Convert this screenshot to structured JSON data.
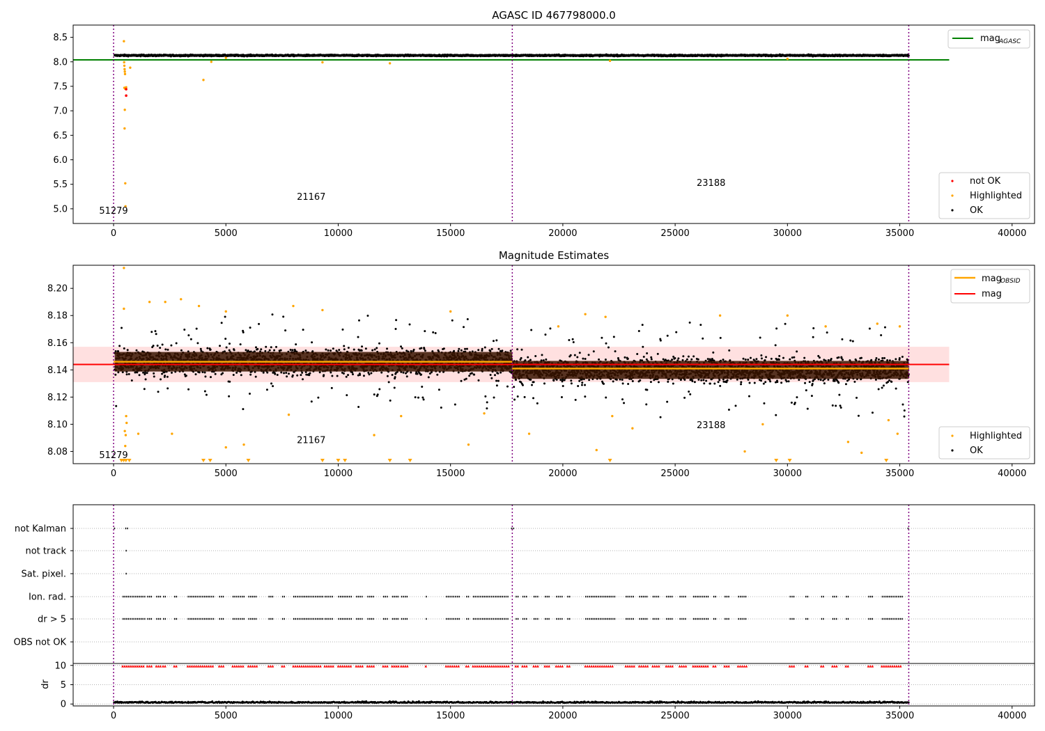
{
  "chart_data": [
    {
      "type": "scatter",
      "title": "AGASC ID 467798000.0",
      "xlim": [
        -1800,
        41000
      ],
      "ylim": [
        4.7,
        8.75
      ],
      "xticks": [
        0,
        5000,
        10000,
        15000,
        20000,
        25000,
        30000,
        35000,
        40000
      ],
      "xtick_labels": [
        "0",
        "5000",
        "10000",
        "15000",
        "20000",
        "25000",
        "30000",
        "35000",
        "40000"
      ],
      "yticks": [
        5.0,
        5.5,
        6.0,
        6.5,
        7.0,
        7.5,
        8.0,
        8.5
      ],
      "ytick_labels": [
        "5.0",
        "5.5",
        "6.0",
        "6.5",
        "7.0",
        "7.5",
        "8.0",
        "8.5"
      ],
      "obsid_boundaries": [
        0,
        17750,
        35400
      ],
      "obsid_labels": [
        {
          "text": "51279",
          "x": 0,
          "y": 4.9
        },
        {
          "text": "21167",
          "x": 8800,
          "y": 5.18
        },
        {
          "text": "23188",
          "x": 26600,
          "y": 5.47
        }
      ],
      "mag_agasc": 8.04,
      "mag_agasc_xrange": [
        -1800,
        37200
      ],
      "ok_band": {
        "x_start": 50,
        "x_end": 35400,
        "y_center": 8.13,
        "y_spread": 0.025
      },
      "highlighted_points": [
        [
          460,
          8.42
        ],
        [
          470,
          7.99
        ],
        [
          480,
          7.92
        ],
        [
          490,
          7.85
        ],
        [
          500,
          7.8
        ],
        [
          510,
          7.75
        ],
        [
          480,
          7.47
        ],
        [
          520,
          7.45
        ],
        [
          560,
          7.48
        ],
        [
          500,
          7.02
        ],
        [
          490,
          6.64
        ],
        [
          520,
          5.52
        ],
        [
          530,
          5.05
        ],
        [
          740,
          7.88
        ],
        [
          4000,
          7.63
        ],
        [
          4350,
          8.0
        ],
        [
          9300,
          7.99
        ],
        [
          12300,
          7.97
        ],
        [
          22100,
          8.02
        ],
        [
          5000,
          8.08
        ],
        [
          30000,
          8.06
        ]
      ],
      "not_ok_points": [
        [
          560,
          7.44
        ],
        [
          560,
          7.31
        ]
      ],
      "legend_mag": {
        "label": "mag",
        "sub": "AGASC",
        "location": "top-right"
      },
      "legend_status": {
        "labels": [
          "not OK",
          "Highlighted",
          "OK"
        ],
        "colors": [
          "#ff0000",
          "#ffa500",
          "#000000"
        ],
        "location": "bottom-right"
      }
    },
    {
      "type": "scatter",
      "title": "Magnitude Estimates",
      "xlim": [
        -1800,
        41000
      ],
      "ylim": [
        8.071,
        8.217
      ],
      "xticks": [
        0,
        5000,
        10000,
        15000,
        20000,
        25000,
        30000,
        35000,
        40000
      ],
      "xtick_labels": [
        "0",
        "5000",
        "10000",
        "15000",
        "20000",
        "25000",
        "30000",
        "35000",
        "40000"
      ],
      "yticks": [
        8.08,
        8.1,
        8.12,
        8.14,
        8.16,
        8.18,
        8.2
      ],
      "ytick_labels": [
        "8.08",
        "8.10",
        "8.12",
        "8.14",
        "8.16",
        "8.18",
        "8.20"
      ],
      "obsid_boundaries": [
        0,
        17750,
        35400
      ],
      "obsid_labels": [
        {
          "text": "51279",
          "x": 0,
          "y": 8.075
        },
        {
          "text": "21167",
          "x": 8800,
          "y": 8.086
        },
        {
          "text": "23188",
          "x": 26600,
          "y": 8.097
        }
      ],
      "mag": 8.144,
      "mag_band": [
        8.131,
        8.157
      ],
      "mag_xrange": [
        -1800,
        37200
      ],
      "mag_obsid": [
        {
          "x0": 0,
          "x1": 17750,
          "y": 8.146
        },
        {
          "x0": 17750,
          "x1": 35400,
          "y": 8.141
        }
      ],
      "ok_band": {
        "x_start": 50,
        "x_end": 35400,
        "segments": [
          {
            "x0": 50,
            "x1": 17750,
            "y_center": 8.146,
            "y_spread": 0.012
          },
          {
            "x0": 17750,
            "x1": 35400,
            "y_center": 8.14,
            "y_spread": 0.011
          }
        ]
      },
      "highlighted_points": [
        [
          460,
          8.215
        ],
        [
          460,
          8.185
        ],
        [
          500,
          8.095
        ],
        [
          520,
          8.084
        ],
        [
          540,
          8.092
        ],
        [
          560,
          8.106
        ],
        [
          580,
          8.101
        ],
        [
          1100,
          8.093
        ],
        [
          1600,
          8.19
        ],
        [
          2300,
          8.19
        ],
        [
          2600,
          8.093
        ],
        [
          3000,
          8.192
        ],
        [
          3800,
          8.187
        ],
        [
          5000,
          8.183
        ],
        [
          5800,
          8.085
        ],
        [
          5000,
          8.083
        ],
        [
          7800,
          8.107
        ],
        [
          8000,
          8.187
        ],
        [
          9300,
          8.184
        ],
        [
          11600,
          8.092
        ],
        [
          12800,
          8.106
        ],
        [
          15000,
          8.183
        ],
        [
          15800,
          8.085
        ],
        [
          16500,
          8.108
        ],
        [
          18500,
          8.093
        ],
        [
          19800,
          8.172
        ],
        [
          21000,
          8.181
        ],
        [
          21500,
          8.081
        ],
        [
          21900,
          8.179
        ],
        [
          22200,
          8.106
        ],
        [
          23100,
          8.097
        ],
        [
          27000,
          8.18
        ],
        [
          28100,
          8.08
        ],
        [
          28900,
          8.1
        ],
        [
          30000,
          8.18
        ],
        [
          31700,
          8.172
        ],
        [
          32700,
          8.087
        ],
        [
          33300,
          8.079
        ],
        [
          34000,
          8.174
        ],
        [
          34500,
          8.103
        ],
        [
          34900,
          8.093
        ],
        [
          35000,
          8.172
        ]
      ],
      "clipped_low_markers_x": [
        350,
        450,
        550,
        700,
        4000,
        4300,
        6000,
        9300,
        10000,
        10300,
        12300,
        13200,
        22100,
        29500,
        30100,
        34400
      ],
      "legend_mag": {
        "items": [
          {
            "label": "mag",
            "sub": "OBSID",
            "color": "#ffa500"
          },
          {
            "label": "mag",
            "sub": "",
            "color": "#ff0000"
          }
        ],
        "location": "top-right"
      },
      "legend_status": {
        "labels": [
          "Highlighted",
          "OK"
        ],
        "colors": [
          "#ffa500",
          "#000000"
        ],
        "location": "bottom-right"
      }
    },
    {
      "type": "scatter",
      "title": "",
      "xlim": [
        -1800,
        41000
      ],
      "xticks": [
        0,
        5000,
        10000,
        15000,
        20000,
        25000,
        30000,
        35000,
        40000
      ],
      "xtick_labels": [
        "0",
        "5000",
        "10000",
        "15000",
        "20000",
        "25000",
        "30000",
        "35000",
        "40000"
      ],
      "obsid_boundaries": [
        0,
        17750,
        35400
      ],
      "flag_rows": [
        "not Kalman",
        "not track",
        "Sat. pixel.",
        "Ion. rad.",
        "dr > 5",
        "OBS not OK"
      ],
      "flag_points": {
        "not Kalman": [
          [
            20,
            80
          ],
          [
            520,
            680
          ],
          [
            17700,
            17800
          ],
          [
            35350,
            35420
          ]
        ],
        "not track": [
          [
            540,
            560
          ]
        ],
        "Sat. pixel.": [
          [
            540,
            560
          ]
        ],
        "Ion. rad.": [
          [
            400,
            1400
          ],
          [
            1500,
            1700
          ],
          [
            1900,
            2100
          ],
          [
            2200,
            2300
          ],
          [
            2700,
            2800
          ],
          [
            3300,
            4500
          ],
          [
            4700,
            4900
          ],
          [
            5300,
            5800
          ],
          [
            6000,
            6400
          ],
          [
            6900,
            7100
          ],
          [
            7500,
            7600
          ],
          [
            8000,
            9300
          ],
          [
            9400,
            9800
          ],
          [
            10000,
            10600
          ],
          [
            10800,
            11100
          ],
          [
            11300,
            11600
          ],
          [
            12000,
            12200
          ],
          [
            12400,
            12700
          ],
          [
            12800,
            13100
          ],
          [
            13900,
            13950
          ],
          [
            14800,
            15400
          ],
          [
            15700,
            15800
          ],
          [
            16000,
            17600
          ],
          [
            17900,
            18000
          ],
          [
            18200,
            18400
          ],
          [
            18700,
            18900
          ],
          [
            19200,
            19400
          ],
          [
            19700,
            20000
          ],
          [
            20200,
            20300
          ],
          [
            21000,
            22300
          ],
          [
            22800,
            23200
          ],
          [
            23400,
            23800
          ],
          [
            24000,
            24300
          ],
          [
            24600,
            24900
          ],
          [
            25200,
            25500
          ],
          [
            25800,
            26500
          ],
          [
            26700,
            26800
          ],
          [
            27200,
            27400
          ],
          [
            27800,
            28200
          ],
          [
            30100,
            30300
          ],
          [
            30800,
            30900
          ],
          [
            31500,
            31600
          ],
          [
            32000,
            32200
          ],
          [
            32600,
            32700
          ],
          [
            33600,
            33800
          ],
          [
            34200,
            35100
          ]
        ],
        "dr > 5": [
          [
            400,
            1400
          ],
          [
            1500,
            1700
          ],
          [
            1900,
            2100
          ],
          [
            2200,
            2300
          ],
          [
            2700,
            2800
          ],
          [
            3300,
            4500
          ],
          [
            4700,
            4900
          ],
          [
            5300,
            5800
          ],
          [
            6000,
            6400
          ],
          [
            6900,
            7100
          ],
          [
            7500,
            7600
          ],
          [
            8000,
            9300
          ],
          [
            9400,
            9800
          ],
          [
            10000,
            10600
          ],
          [
            10800,
            11100
          ],
          [
            11300,
            11600
          ],
          [
            12000,
            12200
          ],
          [
            12400,
            12700
          ],
          [
            12800,
            13100
          ],
          [
            13900,
            13950
          ],
          [
            14800,
            15400
          ],
          [
            15700,
            15800
          ],
          [
            16000,
            17600
          ],
          [
            17900,
            18000
          ],
          [
            18200,
            18400
          ],
          [
            18700,
            18900
          ],
          [
            19200,
            19400
          ],
          [
            19700,
            20000
          ],
          [
            20200,
            20300
          ],
          [
            21000,
            22300
          ],
          [
            22800,
            23200
          ],
          [
            23400,
            23800
          ],
          [
            24000,
            24300
          ],
          [
            24600,
            24900
          ],
          [
            25200,
            25500
          ],
          [
            25800,
            26500
          ],
          [
            26700,
            26800
          ],
          [
            27200,
            27400
          ],
          [
            27800,
            28200
          ],
          [
            30100,
            30300
          ],
          [
            30800,
            30900
          ],
          [
            31500,
            31600
          ],
          [
            32000,
            32200
          ],
          [
            32600,
            32700
          ],
          [
            33600,
            33800
          ],
          [
            34200,
            35100
          ]
        ],
        "OBS not OK": []
      },
      "dr_subplot": {
        "ylabel": "dr",
        "ylim": [
          -0.5,
          10.5
        ],
        "yticks": [
          0,
          5,
          10
        ],
        "ytick_labels": [
          "0",
          "5",
          "10"
        ],
        "baseline": 0.3,
        "clip_value": 10
      }
    }
  ]
}
